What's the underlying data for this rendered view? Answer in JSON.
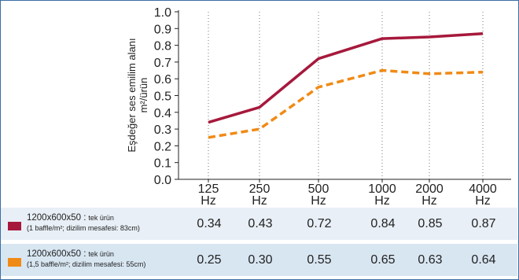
{
  "chart_data": {
    "type": "line",
    "categories": [
      "125",
      "250",
      "500",
      "1000",
      "2000",
      "4000"
    ],
    "x_unit": "Hz",
    "ylabel_line1": "Eşdeğer ses emilim alanı",
    "ylabel_line2": "m²/ürün",
    "ylim": [
      0.0,
      1.0
    ],
    "yticks": [
      "0.0",
      "0.1",
      "0.2",
      "0.3",
      "0.4",
      "0.5",
      "0.6",
      "0.7",
      "0.8",
      "0.9",
      "1.0"
    ],
    "grid": "vertical-dotted",
    "series": [
      {
        "label_main": "1200x600x50 :",
        "label_sub": "tek ürün",
        "label_note": "(1 baffle/m²; dizilim mesafesi: 83cm)",
        "color": "#a6193c",
        "dashed": false,
        "values": [
          0.34,
          0.43,
          0.72,
          0.84,
          0.85,
          0.87
        ],
        "display": [
          "0.34",
          "0.43",
          "0.72",
          "0.84",
          "0.85",
          "0.87"
        ]
      },
      {
        "label_main": "1200x600x50 :",
        "label_sub": "tek ürün",
        "label_note": "(1,5 baffle/m²; dizilim mesafesi: 55cm)",
        "color": "#f08a16",
        "dashed": true,
        "values": [
          0.25,
          0.3,
          0.55,
          0.65,
          0.63,
          0.64
        ],
        "display": [
          "0.25",
          "0.30",
          "0.55",
          "0.65",
          "0.63",
          "0.64"
        ]
      }
    ]
  }
}
